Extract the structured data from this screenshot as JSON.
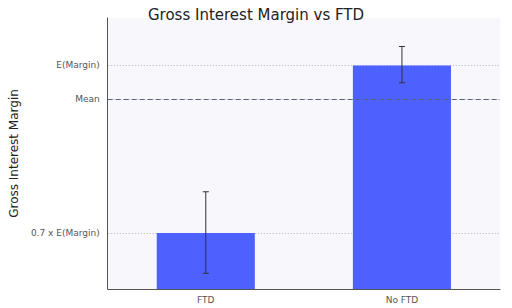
{
  "chart_data": {
    "type": "bar",
    "title": "Gross Interest Margin vs FTD",
    "y_label": "Gross Interest Margin",
    "categories": [
      "FTD",
      "No FTD"
    ],
    "values": [
      0.7,
      1.0
    ],
    "color": "#4d61ff",
    "error_bars": [
      [
        0.628,
        0.774
      ],
      [
        0.969,
        1.034
      ]
    ],
    "mean": 0.94,
    "ylim": [
      0.6,
      1.085
    ],
    "yticks": [
      {
        "value": 0.7,
        "label": "0.7 x E(Margin)"
      },
      {
        "value": 0.94,
        "label": "Mean"
      },
      {
        "value": 1.0,
        "label": "E(Margin)"
      }
    ],
    "grid": true
  }
}
